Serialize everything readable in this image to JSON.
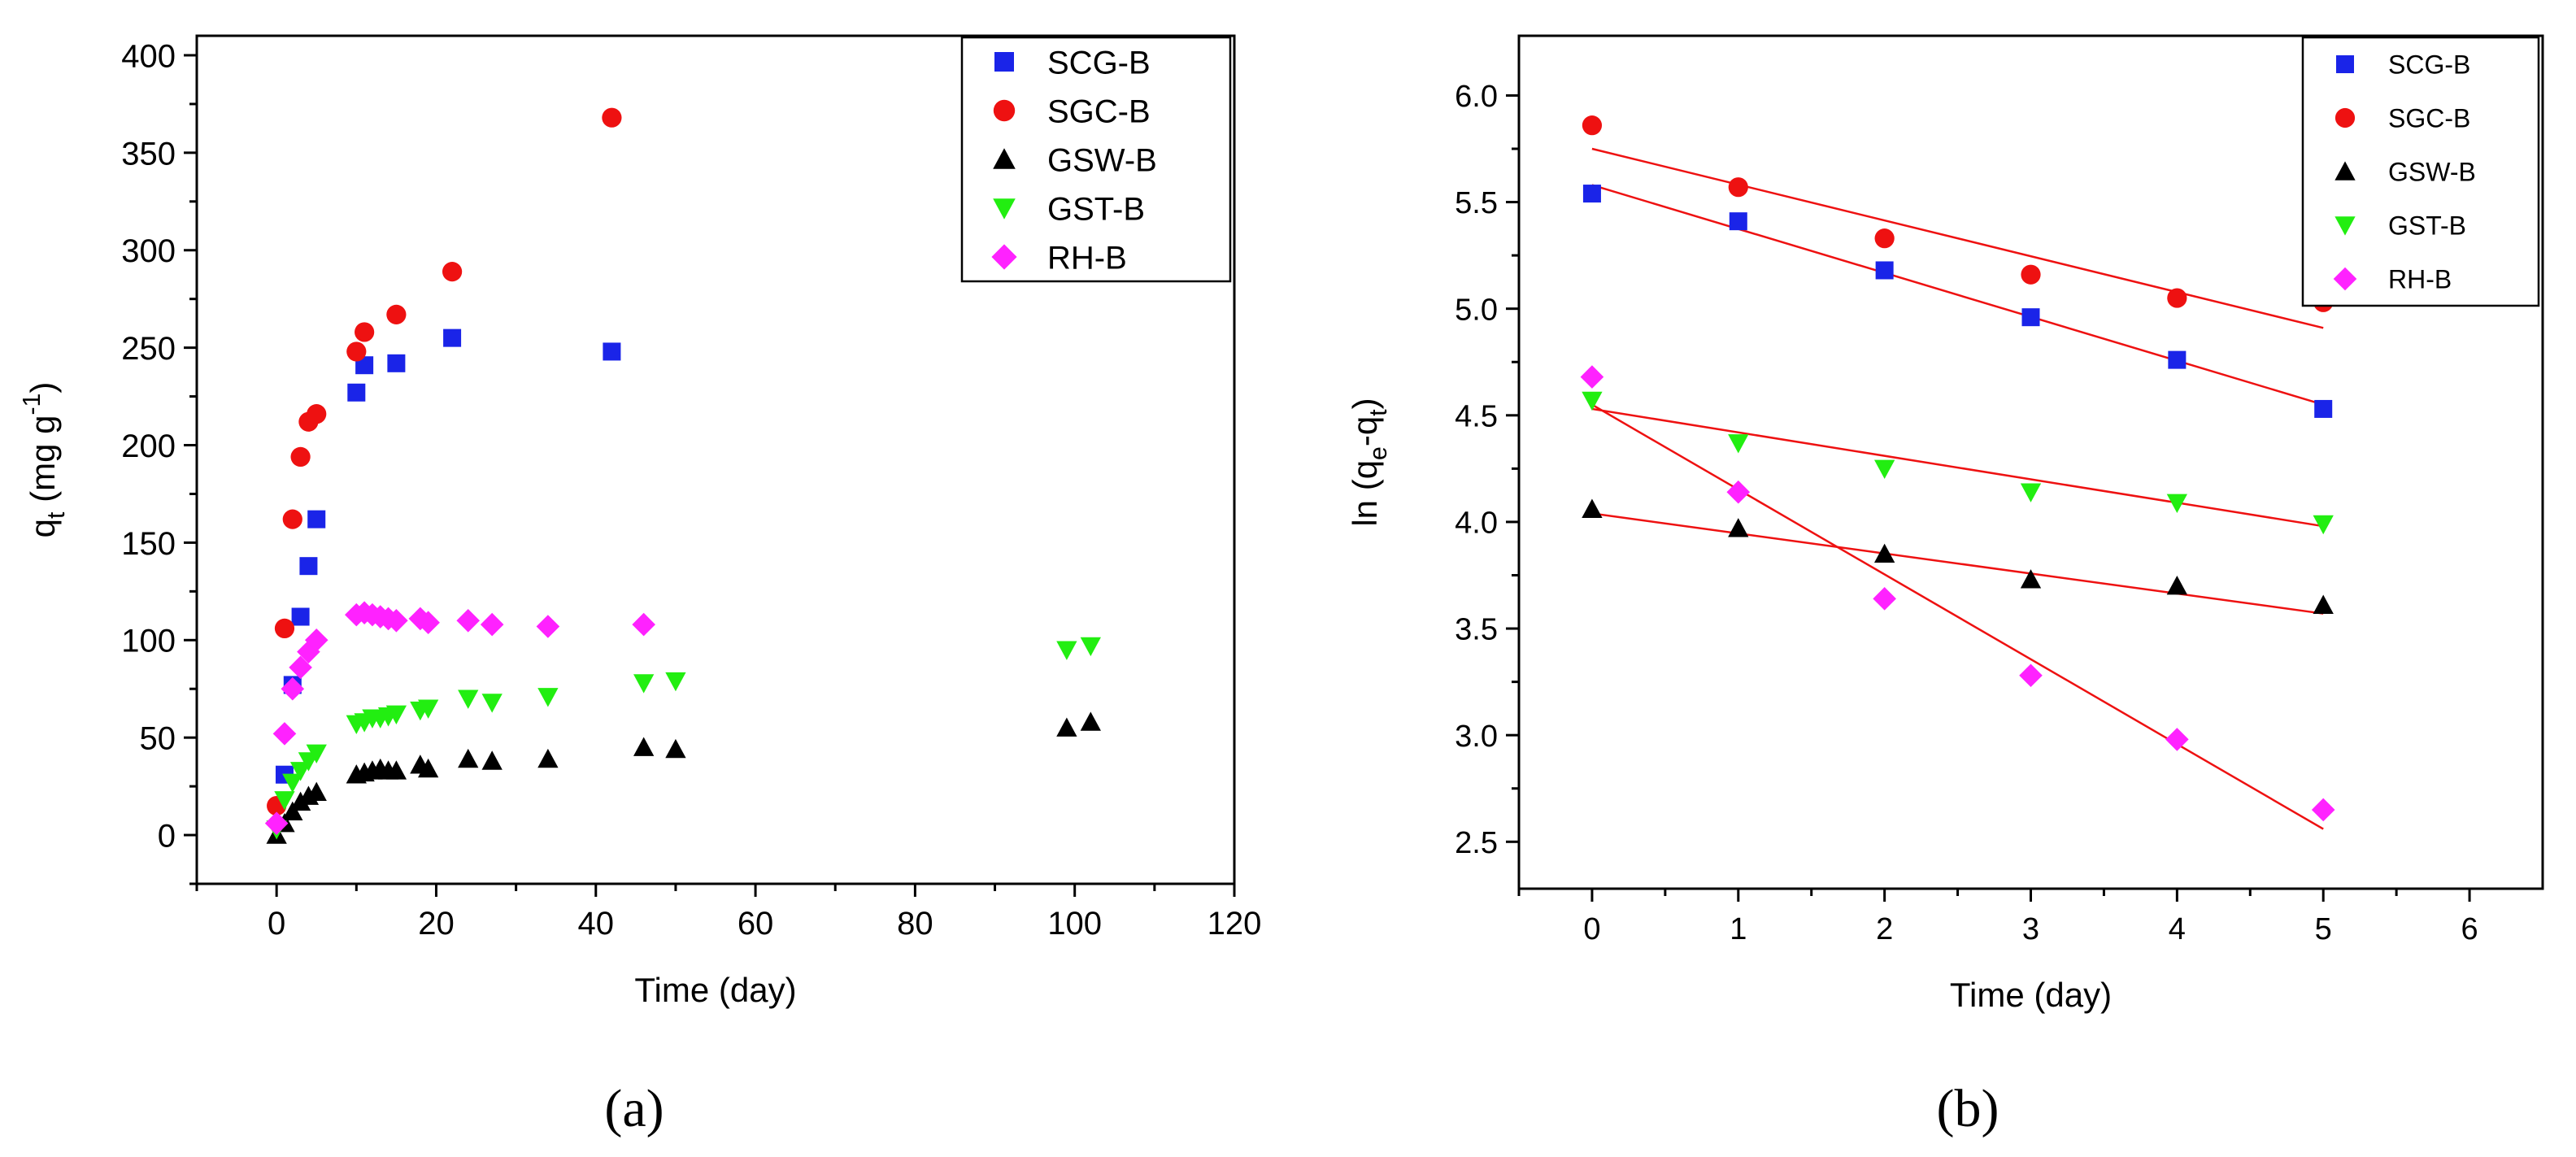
{
  "chart_data": [
    {
      "id": "a",
      "type": "scatter",
      "caption": "(a)",
      "title": "",
      "xlabel": "Time (day)",
      "ylabel": {
        "main": "q",
        "sub": "t",
        "units_pre": " (mg g",
        "sup": "-1",
        "units_post": ")"
      },
      "xlim": [
        -10,
        120
      ],
      "ylim": [
        -25,
        410
      ],
      "xticks": [
        0,
        20,
        40,
        60,
        80,
        100,
        120
      ],
      "yticks": [
        0,
        50,
        100,
        150,
        200,
        250,
        300,
        350,
        400
      ],
      "legend_position": "top-right",
      "series": [
        {
          "name": "SCG-B",
          "marker": "square",
          "color": "#1a24e8",
          "x": [
            1,
            2,
            3,
            4,
            5,
            10,
            11,
            15,
            22,
            42
          ],
          "y": [
            31,
            77,
            112,
            138,
            162,
            227,
            241,
            242,
            255,
            248
          ]
        },
        {
          "name": "SGC-B",
          "marker": "circle",
          "color": "#ee1111",
          "x": [
            0,
            1,
            2,
            3,
            4,
            5,
            10,
            11,
            15,
            22,
            42
          ],
          "y": [
            15,
            106,
            162,
            194,
            212,
            216,
            248,
            258,
            267,
            289,
            368
          ]
        },
        {
          "name": "GSW-B",
          "marker": "triangle-up",
          "color": "#000000",
          "x": [
            0,
            1,
            2,
            3,
            4,
            5,
            10,
            11,
            12,
            13,
            14,
            15,
            18,
            19,
            24,
            27,
            34,
            46,
            50,
            99,
            102
          ],
          "y": [
            0,
            6,
            12,
            17,
            20,
            22,
            31,
            32,
            33,
            34,
            33,
            33,
            36,
            34,
            39,
            38,
            39,
            45,
            44,
            55,
            58
          ]
        },
        {
          "name": "GST-B",
          "marker": "triangle-down",
          "color": "#22ee11",
          "x": [
            0,
            1,
            2,
            3,
            4,
            5,
            10,
            11,
            12,
            13,
            14,
            15,
            18,
            19,
            24,
            27,
            34,
            46,
            50,
            99,
            102
          ],
          "y": [
            3,
            18,
            27,
            33,
            38,
            42,
            57,
            58,
            60,
            60,
            61,
            62,
            64,
            65,
            70,
            68,
            71,
            78,
            79,
            95,
            97
          ]
        },
        {
          "name": "RH-B",
          "marker": "diamond",
          "color": "#ff22ff",
          "x": [
            0,
            1,
            2,
            3,
            4,
            5,
            10,
            11,
            12,
            13,
            14,
            15,
            18,
            19,
            24,
            27,
            34,
            46
          ],
          "y": [
            6,
            52,
            75,
            86,
            94,
            100,
            113,
            114,
            113,
            112,
            111,
            110,
            111,
            109,
            110,
            108,
            107,
            108
          ]
        }
      ]
    },
    {
      "id": "b",
      "type": "scatter",
      "caption": "(b)",
      "title": "",
      "xlabel": "Time (day)",
      "ylabel": {
        "main": "ln (q",
        "sub1": "e",
        "mid": "-q",
        "sub2": "t",
        "end": ")"
      },
      "xlim": [
        -0.5,
        6.5
      ],
      "ylim": [
        2.28,
        6.28
      ],
      "xticks": [
        0,
        1,
        2,
        3,
        4,
        5,
        6
      ],
      "yticks": [
        2.5,
        3.0,
        3.5,
        4.0,
        4.5,
        5.0,
        5.5,
        6.0
      ],
      "ytick_format": "1dp",
      "legend_position": "top-right",
      "fit_line_color": "#ee1111",
      "series": [
        {
          "name": "SCG-B",
          "marker": "square",
          "color": "#1a24e8",
          "x": [
            0,
            1,
            2,
            3,
            4,
            5
          ],
          "y": [
            5.54,
            5.41,
            5.18,
            4.96,
            4.76,
            4.53
          ],
          "fit": [
            [
              0,
              5.58
            ],
            [
              5,
              4.55
            ]
          ]
        },
        {
          "name": "SGC-B",
          "marker": "circle",
          "color": "#ee1111",
          "x": [
            0,
            1,
            2,
            3,
            4,
            5
          ],
          "y": [
            5.86,
            5.57,
            5.33,
            5.16,
            5.05,
            5.03
          ],
          "fit": [
            [
              0,
              5.75
            ],
            [
              5,
              4.91
            ]
          ]
        },
        {
          "name": "GSW-B",
          "marker": "triangle-up",
          "color": "#000000",
          "x": [
            0,
            1,
            2,
            3,
            4,
            5
          ],
          "y": [
            4.06,
            3.97,
            3.85,
            3.73,
            3.7,
            3.61
          ],
          "fit": [
            [
              0,
              4.04
            ],
            [
              5,
              3.57
            ]
          ]
        },
        {
          "name": "GST-B",
          "marker": "triangle-down",
          "color": "#22ee11",
          "x": [
            0,
            1,
            2,
            3,
            4,
            5
          ],
          "y": [
            4.57,
            4.37,
            4.25,
            4.14,
            4.09,
            3.99
          ],
          "fit": [
            [
              0,
              4.53
            ],
            [
              5,
              3.98
            ]
          ]
        },
        {
          "name": "RH-B",
          "marker": "diamond",
          "color": "#ff22ff",
          "x": [
            0,
            1,
            2,
            3,
            4,
            5
          ],
          "y": [
            4.68,
            4.14,
            3.64,
            3.28,
            2.98,
            2.65
          ],
          "fit": [
            [
              0,
              4.55
            ],
            [
              5,
              2.56
            ]
          ]
        }
      ]
    }
  ]
}
